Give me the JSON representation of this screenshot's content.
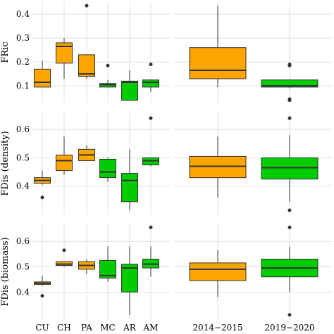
{
  "chart_data": {
    "type": "boxplot",
    "grid": true,
    "background": "#ffffff",
    "colors": {
      "orange": "#FFA500",
      "green": "#00CC00",
      "outline": "#333333",
      "grid": "#d9d9d9"
    },
    "left_categories": [
      "CU",
      "CH",
      "PA",
      "MC",
      "AR",
      "AM"
    ],
    "left_colors": [
      "orange",
      "orange",
      "orange",
      "green",
      "green",
      "green"
    ],
    "right_categories": [
      "2014−2015",
      "2019−2020"
    ],
    "right_colors": [
      "orange",
      "green"
    ],
    "rows": [
      {
        "ylabel": "FRic",
        "ylim": [
          0.03,
          0.45
        ],
        "yticks": [
          0.1,
          0.2,
          0.3,
          0.4
        ],
        "yticklabels": [
          "0.1",
          "0.2",
          "0.3",
          "0.4"
        ],
        "left": [
          {
            "min": 0.095,
            "q1": 0.095,
            "median": 0.115,
            "q3": 0.17,
            "max": 0.205,
            "outliers": []
          },
          {
            "min": 0.13,
            "q1": 0.195,
            "median": 0.265,
            "q3": 0.28,
            "max": 0.3,
            "outliers": []
          },
          {
            "min": 0.13,
            "q1": 0.14,
            "median": 0.15,
            "q3": 0.23,
            "max": 0.23,
            "outliers": [
              0.435
            ]
          },
          {
            "min": 0.095,
            "q1": 0.095,
            "median": 0.105,
            "q3": 0.11,
            "max": 0.125,
            "outliers": [
              0.185
            ]
          },
          {
            "min": 0.04,
            "q1": 0.04,
            "median": 0.115,
            "q3": 0.12,
            "max": 0.165,
            "outliers": []
          },
          {
            "min": 0.075,
            "q1": 0.095,
            "median": 0.115,
            "q3": 0.125,
            "max": 0.125,
            "outliers": [
              0.19
            ]
          }
        ],
        "right": [
          {
            "min": 0.095,
            "q1": 0.13,
            "median": 0.165,
            "q3": 0.26,
            "max": 0.435,
            "outliers": []
          },
          {
            "min": 0.09,
            "q1": 0.095,
            "median": 0.1,
            "q3": 0.125,
            "max": 0.125,
            "outliers": [
              0.19,
              0.185,
              0.045,
              0.04
            ]
          }
        ]
      },
      {
        "ylabel": "FDis (density)",
        "ylim": [
          0.3,
          0.66
        ],
        "yticks": [
          0.4,
          0.5,
          0.6
        ],
        "yticklabels": [
          "0.4",
          "0.5",
          "0.6"
        ],
        "left": [
          {
            "min": 0.405,
            "q1": 0.41,
            "median": 0.42,
            "q3": 0.43,
            "max": 0.455,
            "outliers": [
              0.36
            ]
          },
          {
            "min": 0.44,
            "q1": 0.455,
            "median": 0.49,
            "q3": 0.51,
            "max": 0.575,
            "outliers": []
          },
          {
            "min": 0.49,
            "q1": 0.49,
            "median": 0.51,
            "q3": 0.53,
            "max": 0.545,
            "outliers": []
          },
          {
            "min": 0.415,
            "q1": 0.43,
            "median": 0.45,
            "q3": 0.495,
            "max": 0.5,
            "outliers": []
          },
          {
            "min": 0.315,
            "q1": 0.345,
            "median": 0.42,
            "q3": 0.445,
            "max": 0.53,
            "outliers": []
          },
          {
            "min": 0.47,
            "q1": 0.475,
            "median": 0.49,
            "q3": 0.5,
            "max": 0.5,
            "outliers": [
              0.64
            ]
          }
        ],
        "right": [
          {
            "min": 0.36,
            "q1": 0.43,
            "median": 0.47,
            "q3": 0.505,
            "max": 0.575,
            "outliers": []
          },
          {
            "min": 0.345,
            "q1": 0.425,
            "median": 0.465,
            "q3": 0.5,
            "max": 0.58,
            "outliers": [
              0.64,
              0.315
            ]
          }
        ]
      },
      {
        "ylabel": "FDis (biomass)",
        "ylim": [
          0.29,
          0.67
        ],
        "yticks": [
          0.4,
          0.5,
          0.6
        ],
        "yticklabels": [
          "0.4",
          "0.5",
          "0.6"
        ],
        "left": [
          {
            "min": 0.425,
            "q1": 0.43,
            "median": 0.435,
            "q3": 0.44,
            "max": 0.465,
            "outliers": [
              0.385
            ]
          },
          {
            "min": 0.5,
            "q1": 0.505,
            "median": 0.51,
            "q3": 0.52,
            "max": 0.52,
            "outliers": [
              0.565
            ]
          },
          {
            "min": 0.47,
            "q1": 0.49,
            "median": 0.505,
            "q3": 0.52,
            "max": 0.53,
            "outliers": []
          },
          {
            "min": 0.44,
            "q1": 0.455,
            "median": 0.465,
            "q3": 0.525,
            "max": 0.58,
            "outliers": []
          },
          {
            "min": 0.31,
            "q1": 0.4,
            "median": 0.495,
            "q3": 0.51,
            "max": 0.58,
            "outliers": []
          },
          {
            "min": 0.46,
            "q1": 0.495,
            "median": 0.51,
            "q3": 0.53,
            "max": 0.58,
            "outliers": [
              0.655
            ]
          }
        ],
        "right": [
          {
            "min": 0.38,
            "q1": 0.445,
            "median": 0.49,
            "q3": 0.515,
            "max": 0.565,
            "outliers": []
          },
          {
            "min": 0.4,
            "q1": 0.46,
            "median": 0.495,
            "q3": 0.53,
            "max": 0.58,
            "outliers": [
              0.655,
              0.31
            ]
          }
        ]
      }
    ]
  }
}
